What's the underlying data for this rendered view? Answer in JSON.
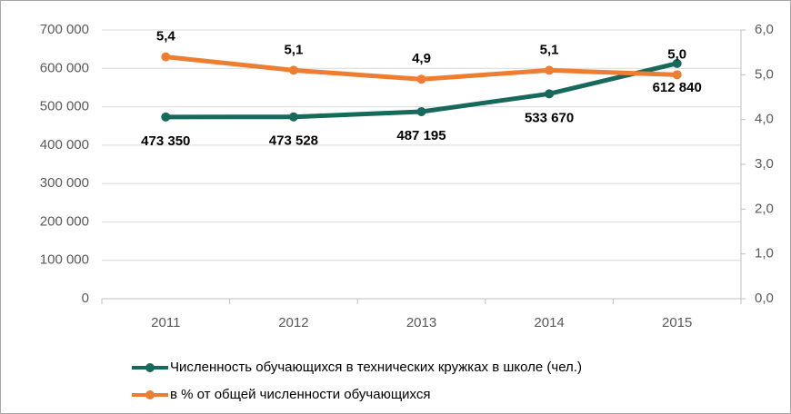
{
  "chart_data": {
    "type": "line",
    "categories": [
      "2011",
      "2012",
      "2013",
      "2014",
      "2015"
    ],
    "series": [
      {
        "name": "Численность обучающихся в технических кружках в школе (чел.)",
        "color": "#17695c",
        "values": [
          473350,
          473528,
          487195,
          533670,
          612840
        ],
        "value_labels": [
          "473 350",
          "473 528",
          "487 195",
          "533 670",
          "612 840"
        ]
      },
      {
        "name": "в % от общей численности обучающихся",
        "color": "#ed7d31",
        "axis": "y2",
        "values": [
          5.4,
          5.1,
          4.9,
          5.1,
          5.0
        ],
        "value_labels": [
          "5,4",
          "5,1",
          "4,9",
          "5,1",
          "5,0"
        ]
      }
    ],
    "ylim": [
      0,
      700000
    ],
    "yticks": [
      0,
      {
        "value": 100000,
        "label": "100 000"
      },
      {
        "value": 200000,
        "label": "200 000"
      },
      {
        "value": 300000,
        "label": "300 000"
      },
      {
        "value": 400000,
        "label": "400 000"
      },
      {
        "value": 500000,
        "label": "500 000"
      },
      {
        "value": 600000,
        "label": "600 000"
      },
      {
        "value": 700000,
        "label": "700 000"
      }
    ],
    "y2lim": [
      0,
      6
    ],
    "y2ticks": [
      {
        "value": 0,
        "label": "0,0"
      },
      {
        "value": 1,
        "label": "1,0"
      },
      {
        "value": 2,
        "label": "2,0"
      },
      {
        "value": 3,
        "label": "3,0"
      },
      {
        "value": 4,
        "label": "4,0"
      },
      {
        "value": 5,
        "label": "5,0"
      },
      {
        "value": 6,
        "label": "6,0"
      }
    ],
    "grid": true,
    "legend": "bottom"
  }
}
